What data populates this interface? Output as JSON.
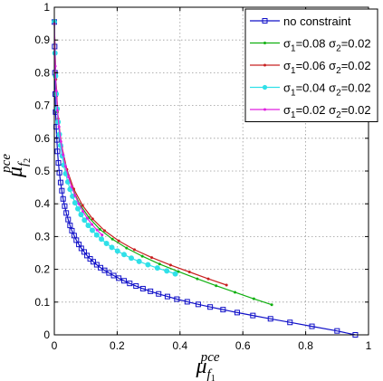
{
  "chart_data": {
    "type": "line",
    "title": "",
    "xlabel": {
      "base": "μ",
      "sub": "f",
      "subsub": "1",
      "sup": "pce"
    },
    "ylabel": {
      "base": "μ",
      "sub": "f",
      "subsub": "2",
      "sup": "pce"
    },
    "xlim": [
      0,
      1
    ],
    "ylim": [
      0,
      1
    ],
    "xticks": [
      0,
      0.2,
      0.4,
      0.6,
      0.8,
      1
    ],
    "yticks": [
      0,
      0.1,
      0.2,
      0.3,
      0.4,
      0.5,
      0.6,
      0.7,
      0.8,
      0.9,
      1
    ],
    "xtick_labels": [
      "0",
      "0.2",
      "0.4",
      "0.6",
      "0.8",
      "1"
    ],
    "ytick_labels": [
      "0",
      "0.1",
      "0.2",
      "0.3",
      "0.4",
      "0.5",
      "0.6",
      "0.7",
      "0.8",
      "0.9",
      "1"
    ],
    "grid": true,
    "grid_style": "dotted",
    "legend_position": "top-right",
    "series": [
      {
        "name": "no constraint",
        "legend": {
          "plain": "no constraint"
        },
        "color": "#1010c8",
        "marker": "square",
        "x": [
          0.0,
          0.001,
          0.002,
          0.003,
          0.004,
          0.006,
          0.008,
          0.01,
          0.013,
          0.016,
          0.02,
          0.024,
          0.028,
          0.033,
          0.038,
          0.044,
          0.05,
          0.056,
          0.063,
          0.07,
          0.078,
          0.086,
          0.095,
          0.104,
          0.114,
          0.124,
          0.135,
          0.147,
          0.16,
          0.174,
          0.189,
          0.205,
          0.222,
          0.24,
          0.26,
          0.282,
          0.306,
          0.332,
          0.36,
          0.39,
          0.423,
          0.458,
          0.496,
          0.537,
          0.582,
          0.632,
          0.688,
          0.75,
          0.82,
          0.9,
          0.958
        ],
        "y": [
          0.955,
          0.88,
          0.8,
          0.735,
          0.68,
          0.635,
          0.595,
          0.56,
          0.525,
          0.495,
          0.465,
          0.44,
          0.415,
          0.393,
          0.372,
          0.352,
          0.334,
          0.318,
          0.303,
          0.289,
          0.276,
          0.264,
          0.253,
          0.242,
          0.232,
          0.223,
          0.214,
          0.205,
          0.197,
          0.189,
          0.181,
          0.173,
          0.165,
          0.157,
          0.149,
          0.141,
          0.133,
          0.125,
          0.117,
          0.109,
          0.101,
          0.093,
          0.085,
          0.077,
          0.068,
          0.059,
          0.049,
          0.038,
          0.026,
          0.012,
          0.0
        ]
      },
      {
        "name": "σ1=0.08 σ2=0.02",
        "legend": {
          "sym1": "σ",
          "sub1": "1",
          "val1": "=0.08 ",
          "sym2": "σ",
          "sub2": "2",
          "val2": "=0.02"
        },
        "color": "#10b010",
        "marker": "dot",
        "x": [
          0.0,
          0.004,
          0.01,
          0.02,
          0.035,
          0.055,
          0.08,
          0.11,
          0.145,
          0.185,
          0.23,
          0.28,
          0.335,
          0.395,
          0.455,
          0.515,
          0.575,
          0.635,
          0.692
        ],
        "y": [
          0.955,
          0.8,
          0.68,
          0.59,
          0.515,
          0.452,
          0.4,
          0.358,
          0.322,
          0.292,
          0.265,
          0.24,
          0.216,
          0.193,
          0.171,
          0.15,
          0.13,
          0.11,
          0.092
        ]
      },
      {
        "name": "σ1=0.06 σ2=0.02",
        "legend": {
          "sym1": "σ",
          "sub1": "1",
          "val1": "=0.06 ",
          "sym2": "σ",
          "sub2": "2",
          "val2": "=0.02"
        },
        "color": "#c82020",
        "marker": "dot",
        "x": [
          0.0,
          0.005,
          0.012,
          0.024,
          0.04,
          0.062,
          0.09,
          0.122,
          0.16,
          0.205,
          0.255,
          0.31,
          0.37,
          0.43,
          0.49,
          0.548
        ],
        "y": [
          0.955,
          0.78,
          0.66,
          0.575,
          0.505,
          0.445,
          0.395,
          0.354,
          0.318,
          0.287,
          0.26,
          0.236,
          0.213,
          0.192,
          0.171,
          0.152
        ]
      },
      {
        "name": "σ1=0.04 σ2=0.02",
        "legend": {
          "sym1": "σ",
          "sub1": "1",
          "val1": "=0.04 ",
          "sym2": "σ",
          "sub2": "2",
          "val2": "=0.02"
        },
        "color": "#30e0e8",
        "marker": "circle",
        "x": [
          0.0,
          0.002,
          0.004,
          0.006,
          0.009,
          0.012,
          0.016,
          0.02,
          0.025,
          0.03,
          0.036,
          0.043,
          0.05,
          0.058,
          0.066,
          0.075,
          0.085,
          0.096,
          0.108,
          0.121,
          0.135,
          0.15,
          0.166,
          0.183,
          0.201,
          0.222,
          0.245,
          0.27,
          0.298,
          0.328,
          0.358,
          0.385
        ],
        "y": [
          0.955,
          0.86,
          0.79,
          0.735,
          0.69,
          0.65,
          0.612,
          0.578,
          0.546,
          0.518,
          0.492,
          0.467,
          0.444,
          0.423,
          0.403,
          0.385,
          0.367,
          0.35,
          0.334,
          0.319,
          0.305,
          0.292,
          0.279,
          0.267,
          0.256,
          0.245,
          0.234,
          0.224,
          0.214,
          0.204,
          0.195,
          0.186
        ]
      },
      {
        "name": "σ1=0.02 σ2=0.02",
        "legend": {
          "sym1": "σ",
          "sub1": "1",
          "val1": "=0.02 ",
          "sym2": "σ",
          "sub2": "2",
          "val2": "=0.02"
        },
        "color": "#e020e0",
        "marker": "dot",
        "x": [
          0.0,
          0.003,
          0.006,
          0.01,
          0.015,
          0.021,
          0.028,
          0.036,
          0.045,
          0.055,
          0.066,
          0.078,
          0.091,
          0.105,
          0.12,
          0.136,
          0.152
        ],
        "y": [
          0.95,
          0.82,
          0.745,
          0.685,
          0.635,
          0.59,
          0.55,
          0.514,
          0.482,
          0.452,
          0.425,
          0.4,
          0.377,
          0.356,
          0.337,
          0.32,
          0.305
        ]
      }
    ]
  }
}
